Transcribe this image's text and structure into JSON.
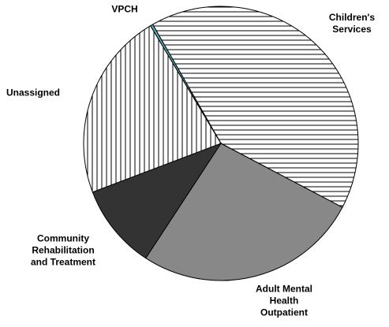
{
  "chart_data": {
    "type": "pie",
    "categories": [
      "Children's Services",
      "Adult Mental Health Outpatient",
      "Community Rehabilitation and Treatment",
      "Unassigned",
      "VPCH"
    ],
    "values": [
      41,
      26.5,
      10,
      22.2,
      0.3
    ],
    "colors": [
      "#ffffff",
      "#888888",
      "#333333",
      "#ffffff",
      "#5aa5b8"
    ],
    "hatch": [
      "horizontal",
      null,
      null,
      "vertical",
      null
    ]
  }
}
